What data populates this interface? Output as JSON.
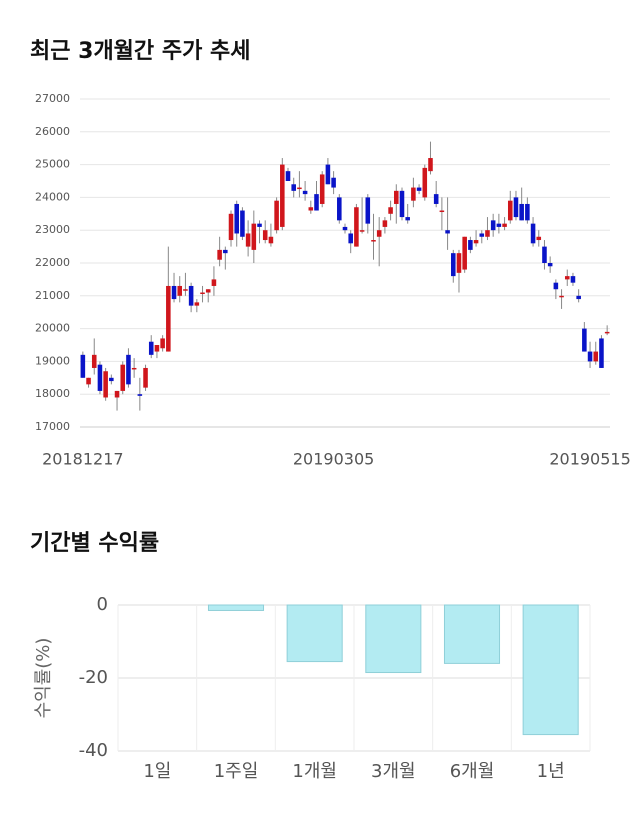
{
  "chart_data": [
    {
      "type": "candlestick",
      "title": "최근 3개월간 주가 추세",
      "categories": [
        "20181217",
        null,
        null,
        null,
        null,
        null,
        null,
        null,
        null,
        null,
        null,
        null,
        null,
        null,
        null,
        null,
        null,
        null,
        null,
        null,
        null,
        null,
        null,
        null,
        null,
        null,
        null,
        null,
        null,
        null,
        null,
        null,
        null,
        null,
        null,
        null,
        null,
        null,
        null,
        null,
        null,
        null,
        null,
        null,
        "20190305",
        null,
        null,
        null,
        null,
        null,
        null,
        null,
        null,
        null,
        null,
        null,
        null,
        null,
        null,
        null,
        null,
        null,
        null,
        null,
        null,
        null,
        null,
        null,
        null,
        null,
        null,
        null,
        null,
        null,
        null,
        null,
        null,
        null,
        null,
        null,
        null,
        null,
        null,
        null,
        null,
        null,
        null,
        null,
        null,
        "20190515",
        null,
        null,
        null
      ],
      "open": [
        19200,
        18300,
        18800,
        18900,
        17900,
        18500,
        17900,
        18100,
        19200,
        18800,
        18000,
        18200,
        19600,
        19300,
        19400,
        19300,
        21300,
        21000,
        21200,
        21300,
        20700,
        21100,
        21100,
        21300,
        22100,
        22400,
        22700,
        23800,
        23600,
        22500,
        22400,
        23200,
        22700,
        22600,
        23000,
        23100,
        24800,
        24400,
        24300,
        24200,
        23600,
        24100,
        23800,
        25000,
        24600,
        24000,
        23100,
        22900,
        22500,
        23000,
        24000,
        22700,
        22800,
        23100,
        23500,
        23800,
        24200,
        23400,
        23900,
        24300,
        24000,
        24800,
        24100,
        23600,
        23000,
        22300,
        21700,
        21800,
        22700,
        22600,
        22900,
        22800,
        23300,
        23200,
        23100,
        23300,
        24000,
        23800,
        23800,
        23200,
        22700,
        22500,
        22000,
        21400,
        21000,
        21500,
        21600,
        21000,
        20000,
        19300,
        19000,
        19700,
        19900
      ],
      "high": [
        19300,
        18500,
        19700,
        19000,
        18800,
        18600,
        18100,
        19000,
        19400,
        19100,
        18500,
        18900,
        19800,
        19500,
        19800,
        22500,
        21700,
        21600,
        21700,
        21400,
        20900,
        21300,
        21200,
        21900,
        22800,
        22500,
        23600,
        23900,
        23700,
        23300,
        23600,
        23300,
        23300,
        23200,
        24000,
        25200,
        24900,
        24600,
        24800,
        24500,
        23900,
        24500,
        24800,
        25200,
        24800,
        24100,
        23200,
        23000,
        23800,
        24000,
        24100,
        23500,
        23400,
        23400,
        23900,
        24400,
        24300,
        23800,
        24600,
        24400,
        25000,
        25700,
        24500,
        24000,
        24000,
        22400,
        22400,
        22800,
        22800,
        23000,
        23000,
        23400,
        23500,
        23500,
        23400,
        24200,
        24200,
        24300,
        24000,
        23400,
        23000,
        22700,
        22200,
        21500,
        21200,
        21800,
        21700,
        21200,
        20200,
        19600,
        19600,
        19800,
        20100
      ],
      "low": [
        18500,
        18200,
        18600,
        18000,
        17800,
        18300,
        17500,
        18000,
        18200,
        18500,
        17500,
        18100,
        19100,
        19100,
        19300,
        19300,
        20800,
        20800,
        21000,
        20500,
        20500,
        20800,
        20800,
        21000,
        21900,
        21800,
        22500,
        22500,
        22700,
        22200,
        22000,
        22600,
        22600,
        22500,
        22900,
        23000,
        24500,
        24000,
        24000,
        23900,
        23500,
        23600,
        23700,
        24400,
        24100,
        23200,
        22900,
        22300,
        22500,
        22900,
        22900,
        22100,
        21900,
        22900,
        23300,
        23200,
        23300,
        23200,
        23700,
        24100,
        23900,
        24700,
        23700,
        23000,
        22400,
        21400,
        21100,
        21700,
        22300,
        22500,
        22600,
        22700,
        22800,
        22900,
        23000,
        23200,
        23300,
        23300,
        23200,
        22500,
        22500,
        21800,
        21700,
        20900,
        20600,
        21300,
        21300,
        20800,
        19300,
        18800,
        18900,
        18800,
        19800
      ],
      "close": [
        18500,
        18500,
        19200,
        18100,
        18700,
        18400,
        18100,
        18900,
        18300,
        18800,
        17950,
        18800,
        19200,
        19500,
        19700,
        21300,
        20900,
        21300,
        21200,
        20700,
        20800,
        21100,
        21200,
        21500,
        22400,
        22300,
        23500,
        22900,
        22800,
        22900,
        23200,
        23100,
        23000,
        22800,
        23900,
        25000,
        24500,
        24200,
        24300,
        24100,
        23700,
        23600,
        24700,
        24400,
        24300,
        23300,
        23000,
        22600,
        23700,
        23000,
        23200,
        22700,
        23000,
        23300,
        23700,
        24200,
        23400,
        23300,
        24300,
        24200,
        24900,
        25200,
        23800,
        23600,
        22900,
        21600,
        22300,
        22800,
        22400,
        22700,
        22800,
        23000,
        23000,
        23100,
        23200,
        23900,
        23400,
        23300,
        23300,
        22600,
        22800,
        22000,
        21900,
        21200,
        21000,
        21600,
        21400,
        20900,
        19300,
        19000,
        19300,
        18800,
        19900
      ],
      "up_color": "#d0161c",
      "down_color": "#0a14c8",
      "ylim": [
        17000,
        27000
      ],
      "yticks": [
        17000,
        18000,
        19000,
        20000,
        21000,
        22000,
        23000,
        24000,
        25000,
        26000,
        27000
      ],
      "grid": true
    },
    {
      "type": "bar",
      "title": "기간별 수익률",
      "ylabel": "수익률(%)",
      "categories": [
        "1일",
        "1주일",
        "1개월",
        "3개월",
        "6개월",
        "1년"
      ],
      "values": [
        0,
        -1.5,
        -15.5,
        -18.5,
        -16,
        -35.5
      ],
      "color": "#b3ebf2",
      "edge_color": "#8fcfd8",
      "ylim": [
        -40,
        0
      ],
      "yticks": [
        -40,
        -20,
        0
      ],
      "grid": true
    }
  ]
}
